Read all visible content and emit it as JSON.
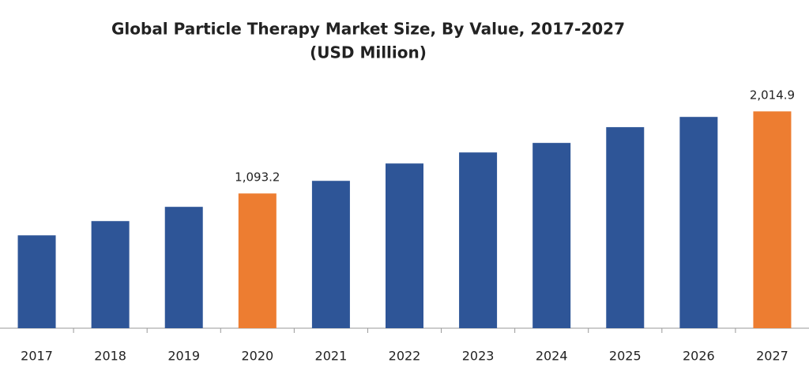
{
  "chart_data": {
    "type": "bar",
    "title": "Global Particle Therapy Market Size, By Value, 2017-2027",
    "subtitle": "(USD Million)",
    "categories": [
      "2017",
      "2018",
      "2019",
      "2020",
      "2021",
      "2022",
      "2023",
      "2024",
      "2025",
      "2026",
      "2027"
    ],
    "values": [
      623,
      783,
      943,
      1093.2,
      1235,
      1430,
      1554,
      1661,
      1838,
      1953,
      2014.9
    ],
    "value_labels": [
      null,
      null,
      null,
      "1,093.2",
      null,
      null,
      null,
      null,
      null,
      null,
      "2,014.9"
    ],
    "colors": [
      "#2e5597",
      "#2e5597",
      "#2e5597",
      "#ed7d31",
      "#2e5597",
      "#2e5597",
      "#2e5597",
      "#2e5597",
      "#2e5597",
      "#2e5597",
      "#ed7d31"
    ],
    "ylim": [
      -420,
      2380
    ]
  }
}
